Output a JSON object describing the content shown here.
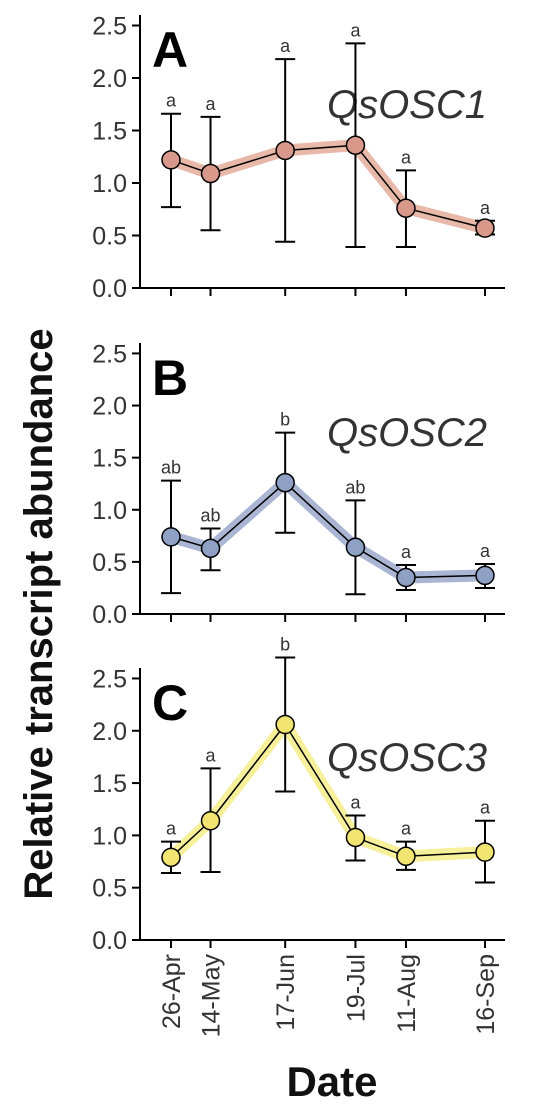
{
  "chart_data": {
    "type": "line",
    "xlabel": "Date",
    "ylabel": "Relative transcript abundance",
    "categories": [
      "26-Apr",
      "14-May",
      "17-Jun",
      "19-Jul",
      "11-Aug",
      "16-Sep"
    ],
    "x_days": [
      0,
      18,
      52,
      84,
      107,
      143
    ],
    "ylim": [
      0,
      2.6
    ],
    "yticks": [
      "0.0",
      "0.5",
      "1.0",
      "1.5",
      "2.0",
      "2.5"
    ],
    "grid": false,
    "panels": [
      {
        "letter": "A",
        "gene": "QsOSC1",
        "color": "#d9998a",
        "fill": "#e8b8a8",
        "values": [
          1.22,
          1.09,
          1.31,
          1.36,
          0.76,
          0.57
        ],
        "err_low": [
          0.77,
          0.55,
          0.44,
          0.39,
          0.39,
          0.51
        ],
        "err_high": [
          1.66,
          1.63,
          2.18,
          2.33,
          1.12,
          0.64
        ],
        "letters": [
          "a",
          "a",
          "a",
          "a",
          "a",
          "a"
        ]
      },
      {
        "letter": "B",
        "gene": "QsOSC2",
        "color": "#8ea0c4",
        "fill": "#a9b5d3",
        "values": [
          0.74,
          0.63,
          1.26,
          0.64,
          0.35,
          0.37
        ],
        "err_low": [
          0.2,
          0.42,
          0.78,
          0.19,
          0.23,
          0.25
        ],
        "err_high": [
          1.28,
          0.82,
          1.74,
          1.09,
          0.47,
          0.48
        ],
        "letters": [
          "ab",
          "ab",
          "b",
          "ab",
          "a",
          "a"
        ]
      },
      {
        "letter": "C",
        "gene": "QsOSC3",
        "color": "#f2e470",
        "fill": "#f7f09a",
        "values": [
          0.79,
          1.14,
          2.06,
          0.98,
          0.8,
          0.84
        ],
        "err_low": [
          0.64,
          0.65,
          1.42,
          0.76,
          0.67,
          0.55
        ],
        "err_high": [
          0.94,
          1.64,
          2.7,
          1.19,
          0.94,
          1.14
        ],
        "letters": [
          "a",
          "a",
          "b",
          "a",
          "a",
          "a"
        ]
      }
    ]
  }
}
